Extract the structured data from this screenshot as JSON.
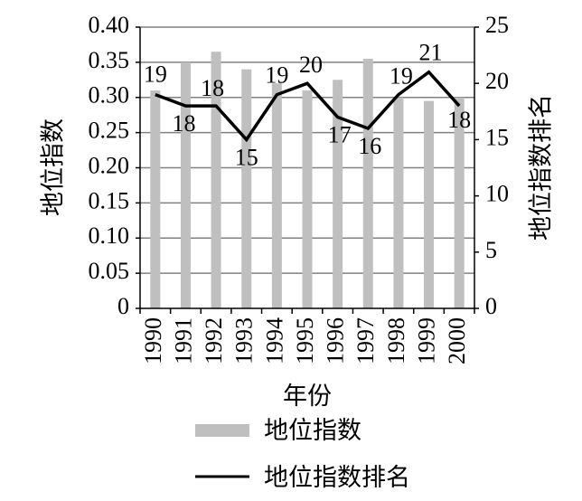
{
  "chart_data": {
    "type": "bar+line",
    "categories": [
      "1990",
      "1991",
      "1992",
      "1993",
      "1994",
      "1995",
      "1996",
      "1997",
      "1998",
      "1999",
      "2000"
    ],
    "series": [
      {
        "name": "地位指数",
        "type": "bar",
        "axis": "left",
        "color": "#bfbfbf",
        "values": [
          0.31,
          0.35,
          0.365,
          0.34,
          0.32,
          0.31,
          0.325,
          0.355,
          0.3,
          0.295,
          0.3
        ]
      },
      {
        "name": "地位指数排名",
        "type": "line",
        "axis": "right",
        "color": "#000000",
        "values": [
          19,
          18,
          18,
          15,
          19,
          20,
          17,
          16,
          19,
          21,
          18
        ]
      }
    ],
    "xlabel": "年份",
    "ylabel_left": "地位指数",
    "ylabel_right": "地位指数排名",
    "ylim_left": [
      0,
      0.4
    ],
    "ylim_right": [
      0,
      25
    ],
    "yticks_left": [
      "0",
      "0.05",
      "0.10",
      "0.15",
      "0.20",
      "0.25",
      "0.30",
      "0.35",
      "0.40"
    ],
    "yticks_right": [
      "0",
      "5",
      "10",
      "15",
      "20",
      "25"
    ],
    "grid": true,
    "legend_position": "bottom"
  }
}
